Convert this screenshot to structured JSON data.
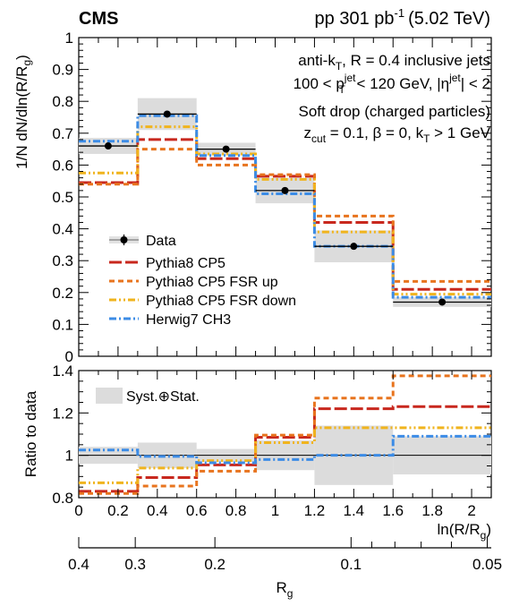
{
  "header": {
    "experiment": "CMS",
    "run_info": "pp 301 pb",
    "run_info_sup": "-1",
    "run_info_energy": "(5.02 TeV)"
  },
  "annotations": {
    "line1": "anti-k",
    "line1_sub": "T",
    "line1_rest": ", R = 0.4 inclusive jets",
    "line2": "100 < p",
    "line2_sup": "jet",
    "line2_sub": "T",
    "line2_rest": " < 120 GeV, |η",
    "line2_sup2": "jet",
    "line2_rest2": "| < 2",
    "line3": "Soft drop (charged particles)",
    "line4": "z",
    "line4_sub": "cut",
    "line4_rest": " = 0.1, β = 0, k",
    "line4_sub2": "T",
    "line4_rest2": " > 1 GeV"
  },
  "chart_data": [
    {
      "type": "line",
      "ylabel": "1/N dN/dln(R/R_g)",
      "ylabel_parts": {
        "main": "1/N dN/dln(R/R",
        "sub": "g",
        "end": ")"
      },
      "xlim": [
        0,
        2.1
      ],
      "ylim": [
        0,
        1
      ],
      "bin_edges": [
        0,
        0.3,
        0.6,
        0.9,
        1.2,
        1.6,
        2.1
      ],
      "y_ticks": [
        "0",
        "0.1",
        "0.2",
        "0.3",
        "0.4",
        "0.5",
        "0.6",
        "0.7",
        "0.8",
        "0.9",
        "1"
      ],
      "data": {
        "name": "Data",
        "x": [
          0.15,
          0.45,
          0.75,
          1.05,
          1.4,
          1.85
        ],
        "values": [
          0.66,
          0.76,
          0.65,
          0.52,
          0.345,
          0.17
        ],
        "syst_band": [
          [
            0.635,
            0.685
          ],
          [
            0.71,
            0.81
          ],
          [
            0.63,
            0.67
          ],
          [
            0.48,
            0.56
          ],
          [
            0.295,
            0.395
          ],
          [
            0.155,
            0.185
          ]
        ]
      },
      "series": [
        {
          "name": "Pythia8 CP5",
          "values": [
            0.545,
            0.68,
            0.62,
            0.565,
            0.42,
            0.21
          ],
          "color": "#c8281e",
          "style": "longdash"
        },
        {
          "name": "Pythia8 CP5 FSR up",
          "values": [
            0.54,
            0.65,
            0.6,
            0.57,
            0.44,
            0.235
          ],
          "color": "#e8741e",
          "style": "dash"
        },
        {
          "name": "Pythia8 CP5 FSR down",
          "values": [
            0.575,
            0.72,
            0.635,
            0.555,
            0.39,
            0.195
          ],
          "color": "#f0b41e",
          "style": "dashdotdot"
        },
        {
          "name": "Herwig7 CH3",
          "values": [
            0.675,
            0.755,
            0.63,
            0.51,
            0.345,
            0.185
          ],
          "color": "#3c8ce6",
          "style": "dashdot"
        }
      ]
    },
    {
      "type": "line",
      "ylabel": "Ratio to data",
      "xlabel": "ln(R/R_g)",
      "xlabel_parts": {
        "main": "ln(R/R",
        "sub": "g",
        "end": ")"
      },
      "xlim": [
        0,
        2.1
      ],
      "ylim": [
        0.8,
        1.4
      ],
      "x_ticks": [
        "0",
        "0.2",
        "0.4",
        "0.6",
        "0.8",
        "1",
        "1.2",
        "1.4",
        "1.6",
        "1.8",
        "2"
      ],
      "y_ticks": [
        "0.8",
        "1",
        "1.2",
        "1.4"
      ],
      "band_legend": "Syst.⊕Stat.",
      "band": [
        [
          0.96,
          1.04
        ],
        [
          0.94,
          1.06
        ],
        [
          0.97,
          1.03
        ],
        [
          0.93,
          1.07
        ],
        [
          0.86,
          1.14
        ],
        [
          0.91,
          1.09
        ]
      ],
      "series": [
        {
          "name": "Pythia8 CP5",
          "values": [
            0.83,
            0.895,
            0.955,
            1.085,
            1.22,
            1.23
          ]
        },
        {
          "name": "Pythia8 CP5 FSR up",
          "values": [
            0.82,
            0.855,
            0.925,
            1.095,
            1.27,
            1.375
          ]
        },
        {
          "name": "Pythia8 CP5 FSR down",
          "values": [
            0.87,
            0.94,
            0.975,
            1.06,
            1.13,
            1.13
          ]
        },
        {
          "name": "Herwig7 CH3",
          "values": [
            1.025,
            0.995,
            0.965,
            0.98,
            1.0,
            1.09
          ]
        }
      ]
    }
  ],
  "rg_axis": {
    "label_main": "R",
    "label_sub": "g",
    "ticks": [
      {
        "value": 0.4,
        "label": "0.4"
      },
      {
        "value": 0.3,
        "label": "0.3"
      },
      {
        "value": 0.2,
        "label": "0.2"
      },
      {
        "value": 0.1,
        "label": "0.1"
      },
      {
        "value": 0.05,
        "label": "0.05"
      }
    ],
    "minor_ticks": [
      0.09,
      0.08,
      0.07,
      0.06
    ]
  }
}
